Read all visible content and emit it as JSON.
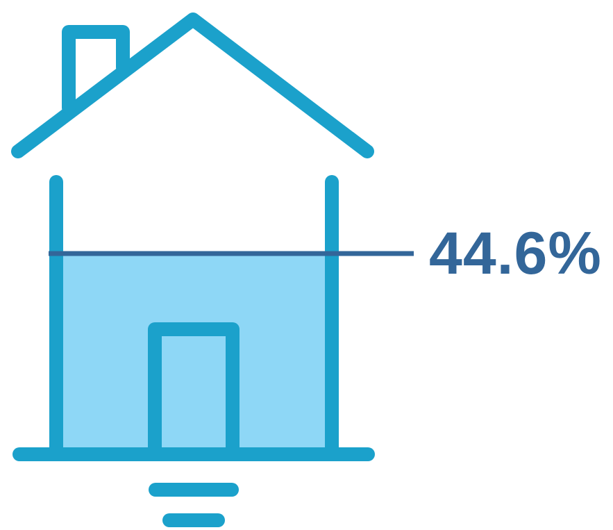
{
  "infographic": {
    "icon": "house-icon",
    "level_label": "44.6%",
    "level_value": 44.6
  },
  "colors": {
    "outline": "#1ba1cb",
    "fill": "#8ed7f6",
    "level_line": "#336699",
    "label": "#336699",
    "background": "#ffffff"
  }
}
